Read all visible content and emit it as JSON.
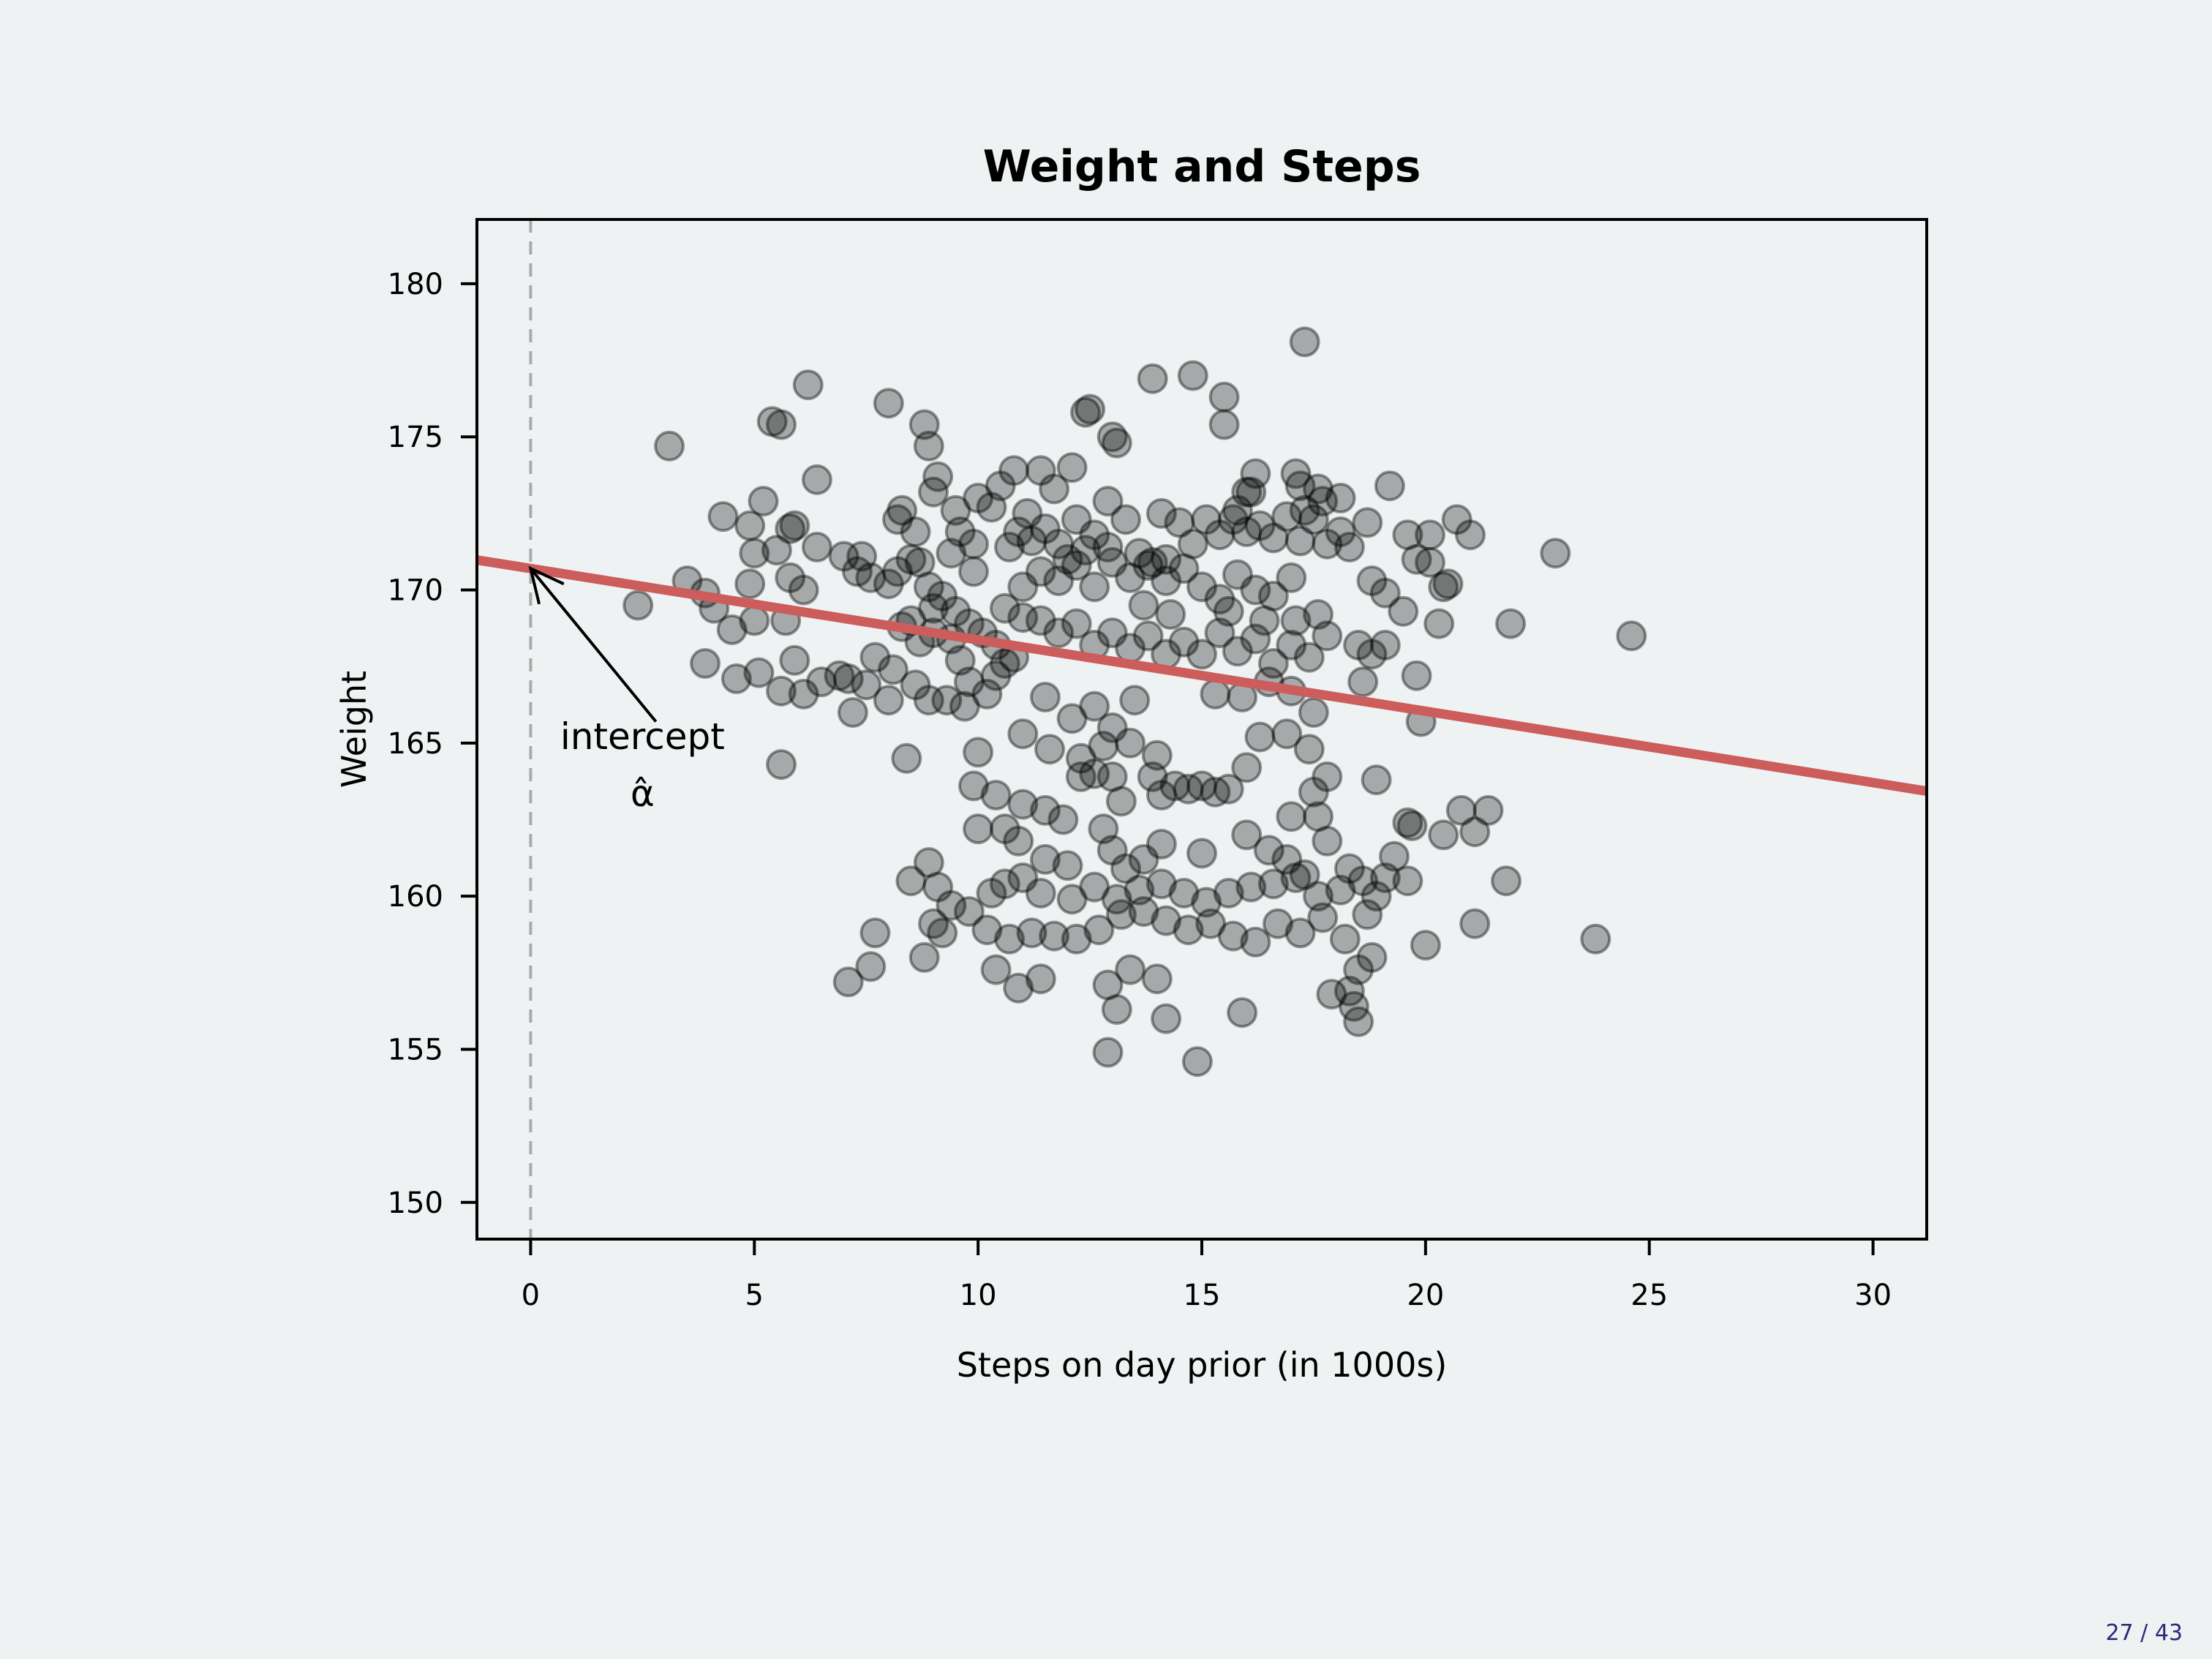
{
  "page": {
    "number": "27 / 43",
    "background": "#eef2f2"
  },
  "chart_data": {
    "type": "scatter",
    "title": "Weight and Steps",
    "xlabel": "Steps on day prior (in 1000s)",
    "ylabel": "Weight",
    "xlim": [
      -1.2,
      31.2
    ],
    "ylim": [
      148.8,
      182.1
    ],
    "xticks": [
      0,
      5,
      10,
      15,
      20,
      25,
      30
    ],
    "yticks": [
      150,
      155,
      160,
      165,
      170,
      175,
      180
    ],
    "grid": false,
    "point_color": "#000000",
    "point_alpha": 0.3,
    "fit_line": {
      "intercept": 170.7,
      "slope": -0.233,
      "color": "#cd5c5c"
    },
    "vline": {
      "x": 0,
      "style": "dashed",
      "color": "#aaaaaa"
    },
    "annotation": {
      "line1": "intercept",
      "line2": "α̂",
      "arrow_to": [
        0,
        170.7
      ],
      "text_at": [
        2.5,
        164.8
      ]
    },
    "points": [
      [
        3.1,
        174.7
      ],
      [
        6.2,
        176.7
      ],
      [
        8.0,
        176.1
      ],
      [
        5.4,
        175.5
      ],
      [
        5.6,
        175.4
      ],
      [
        8.8,
        175.4
      ],
      [
        8.9,
        174.7
      ],
      [
        6.4,
        173.6
      ],
      [
        5.2,
        172.9
      ],
      [
        4.3,
        172.4
      ],
      [
        4.9,
        172.1
      ],
      [
        5.8,
        172.0
      ],
      [
        5.9,
        172.1
      ],
      [
        6.4,
        171.4
      ],
      [
        5.0,
        171.2
      ],
      [
        5.5,
        171.3
      ],
      [
        3.5,
        170.3
      ],
      [
        4.9,
        170.2
      ],
      [
        5.8,
        170.4
      ],
      [
        6.1,
        170.0
      ],
      [
        2.4,
        169.5
      ],
      [
        3.9,
        169.9
      ],
      [
        4.1,
        169.4
      ],
      [
        5.0,
        169.0
      ],
      [
        4.5,
        168.7
      ],
      [
        5.7,
        169.0
      ],
      [
        3.9,
        167.6
      ],
      [
        4.6,
        167.1
      ],
      [
        5.1,
        167.3
      ],
      [
        5.9,
        167.7
      ],
      [
        5.6,
        166.7
      ],
      [
        6.1,
        166.6
      ],
      [
        6.5,
        167.0
      ],
      [
        5.6,
        164.3
      ],
      [
        6.9,
        167.2
      ],
      [
        7.1,
        167.1
      ],
      [
        7.5,
        166.9
      ],
      [
        7.2,
        166.0
      ],
      [
        7.7,
        167.8
      ],
      [
        8.0,
        166.4
      ],
      [
        7.0,
        171.1
      ],
      [
        7.4,
        171.1
      ],
      [
        7.3,
        170.6
      ],
      [
        7.6,
        170.4
      ],
      [
        8.0,
        170.2
      ],
      [
        8.2,
        170.6
      ],
      [
        8.5,
        171.0
      ],
      [
        8.2,
        172.3
      ],
      [
        8.3,
        172.6
      ],
      [
        8.6,
        171.9
      ],
      [
        9.1,
        173.7
      ],
      [
        9.0,
        173.2
      ],
      [
        9.5,
        172.6
      ],
      [
        9.6,
        171.9
      ],
      [
        9.9,
        171.5
      ],
      [
        8.7,
        170.9
      ],
      [
        8.9,
        170.1
      ],
      [
        9.2,
        169.8
      ],
      [
        9.5,
        169.3
      ],
      [
        9.0,
        169.4
      ],
      [
        8.5,
        169.0
      ],
      [
        8.3,
        168.8
      ],
      [
        8.7,
        168.3
      ],
      [
        9.0,
        168.6
      ],
      [
        9.4,
        168.4
      ],
      [
        9.8,
        168.9
      ],
      [
        10.1,
        168.6
      ],
      [
        10.4,
        168.2
      ],
      [
        10.8,
        167.8
      ],
      [
        9.6,
        167.7
      ],
      [
        8.1,
        167.4
      ],
      [
        8.6,
        166.9
      ],
      [
        8.9,
        166.4
      ],
      [
        9.3,
        166.4
      ],
      [
        9.7,
        166.2
      ],
      [
        10.2,
        166.6
      ],
      [
        10.4,
        167.2
      ],
      [
        10.6,
        167.6
      ],
      [
        8.4,
        164.5
      ],
      [
        9.8,
        167.0
      ],
      [
        10.0,
        173.0
      ],
      [
        10.3,
        172.7
      ],
      [
        10.5,
        173.4
      ],
      [
        10.8,
        173.9
      ],
      [
        11.1,
        172.5
      ],
      [
        11.4,
        173.9
      ],
      [
        11.7,
        173.3
      ],
      [
        12.1,
        174.0
      ],
      [
        12.5,
        175.9
      ],
      [
        12.4,
        175.8
      ],
      [
        13.1,
        174.8
      ],
      [
        13.9,
        176.9
      ],
      [
        14.8,
        177.0
      ],
      [
        15.5,
        176.3
      ],
      [
        15.5,
        175.4
      ],
      [
        17.3,
        178.1
      ],
      [
        10.9,
        171.9
      ],
      [
        11.2,
        171.6
      ],
      [
        11.5,
        172.0
      ],
      [
        11.8,
        171.5
      ],
      [
        12.2,
        172.3
      ],
      [
        12.6,
        171.8
      ],
      [
        12.9,
        171.4
      ],
      [
        13.3,
        172.3
      ],
      [
        13.6,
        171.2
      ],
      [
        13.9,
        170.9
      ],
      [
        14.2,
        171.0
      ],
      [
        14.5,
        172.2
      ],
      [
        14.8,
        171.5
      ],
      [
        15.1,
        172.3
      ],
      [
        15.4,
        171.8
      ],
      [
        15.7,
        172.3
      ],
      [
        16.0,
        171.9
      ],
      [
        16.3,
        172.1
      ],
      [
        16.6,
        171.7
      ],
      [
        16.9,
        172.4
      ],
      [
        17.2,
        171.6
      ],
      [
        17.5,
        172.3
      ],
      [
        17.8,
        171.5
      ],
      [
        18.1,
        171.9
      ],
      [
        11.0,
        170.1
      ],
      [
        11.4,
        170.6
      ],
      [
        11.8,
        170.3
      ],
      [
        12.2,
        170.8
      ],
      [
        12.6,
        170.1
      ],
      [
        13.0,
        170.9
      ],
      [
        13.4,
        170.4
      ],
      [
        13.8,
        170.8
      ],
      [
        14.2,
        170.3
      ],
      [
        14.6,
        170.7
      ],
      [
        15.0,
        170.1
      ],
      [
        15.4,
        169.7
      ],
      [
        15.8,
        170.5
      ],
      [
        16.2,
        170.0
      ],
      [
        16.6,
        169.8
      ],
      [
        17.0,
        170.4
      ],
      [
        10.6,
        169.4
      ],
      [
        11.0,
        169.1
      ],
      [
        11.4,
        169.0
      ],
      [
        11.8,
        168.6
      ],
      [
        12.2,
        168.9
      ],
      [
        12.6,
        168.2
      ],
      [
        13.0,
        168.6
      ],
      [
        13.4,
        168.1
      ],
      [
        13.8,
        168.5
      ],
      [
        14.2,
        167.9
      ],
      [
        14.6,
        168.3
      ],
      [
        15.0,
        167.9
      ],
      [
        15.4,
        168.6
      ],
      [
        15.8,
        168.0
      ],
      [
        16.2,
        168.4
      ],
      [
        16.6,
        167.6
      ],
      [
        17.0,
        168.2
      ],
      [
        17.4,
        167.8
      ],
      [
        17.8,
        168.5
      ],
      [
        13.0,
        175.0
      ],
      [
        16.2,
        173.8
      ],
      [
        16.1,
        173.2
      ],
      [
        17.1,
        173.8
      ],
      [
        17.2,
        173.4
      ],
      [
        17.7,
        172.9
      ],
      [
        16.0,
        173.2
      ],
      [
        11.5,
        166.5
      ],
      [
        12.1,
        165.8
      ],
      [
        12.6,
        166.2
      ],
      [
        13.0,
        165.5
      ],
      [
        13.5,
        166.4
      ],
      [
        11.0,
        165.3
      ],
      [
        11.6,
        164.8
      ],
      [
        12.3,
        164.5
      ],
      [
        12.8,
        164.9
      ],
      [
        13.4,
        165.0
      ],
      [
        14.0,
        164.6
      ],
      [
        15.3,
        166.6
      ],
      [
        15.9,
        166.5
      ],
      [
        16.5,
        167.0
      ],
      [
        17.0,
        166.7
      ],
      [
        16.3,
        165.2
      ],
      [
        16.9,
        165.3
      ],
      [
        17.5,
        166.0
      ],
      [
        17.4,
        164.8
      ],
      [
        10.0,
        164.7
      ],
      [
        9.9,
        163.6
      ],
      [
        10.4,
        163.3
      ],
      [
        11.0,
        163.0
      ],
      [
        11.5,
        162.8
      ],
      [
        11.9,
        162.5
      ],
      [
        12.3,
        163.9
      ],
      [
        12.6,
        164.0
      ],
      [
        13.0,
        163.9
      ],
      [
        13.2,
        163.1
      ],
      [
        13.9,
        163.9
      ],
      [
        14.1,
        163.3
      ],
      [
        14.4,
        163.6
      ],
      [
        14.7,
        163.5
      ],
      [
        15.0,
        163.6
      ],
      [
        15.3,
        163.4
      ],
      [
        15.6,
        163.5
      ],
      [
        16.0,
        164.2
      ],
      [
        17.0,
        162.6
      ],
      [
        17.5,
        163.4
      ],
      [
        17.8,
        163.9
      ],
      [
        17.6,
        162.6
      ],
      [
        10.0,
        162.2
      ],
      [
        10.6,
        162.2
      ],
      [
        10.9,
        161.8
      ],
      [
        11.5,
        161.2
      ],
      [
        12.0,
        161.0
      ],
      [
        12.8,
        162.2
      ],
      [
        13.0,
        161.5
      ],
      [
        13.3,
        160.9
      ],
      [
        13.7,
        161.2
      ],
      [
        14.1,
        161.7
      ],
      [
        15.0,
        161.4
      ],
      [
        16.0,
        162.0
      ],
      [
        16.5,
        161.5
      ],
      [
        16.9,
        161.2
      ],
      [
        17.3,
        160.7
      ],
      [
        17.8,
        161.8
      ],
      [
        18.3,
        160.9
      ],
      [
        8.9,
        161.1
      ],
      [
        8.5,
        160.5
      ],
      [
        9.1,
        160.3
      ],
      [
        9.4,
        159.7
      ],
      [
        9.8,
        159.5
      ],
      [
        10.3,
        160.1
      ],
      [
        10.6,
        160.4
      ],
      [
        11.0,
        160.6
      ],
      [
        11.4,
        160.1
      ],
      [
        12.1,
        159.9
      ],
      [
        12.6,
        160.3
      ],
      [
        13.1,
        159.9
      ],
      [
        13.6,
        160.2
      ],
      [
        14.1,
        160.4
      ],
      [
        14.6,
        160.1
      ],
      [
        15.1,
        159.8
      ],
      [
        15.6,
        160.1
      ],
      [
        16.1,
        160.3
      ],
      [
        16.6,
        160.4
      ],
      [
        17.1,
        160.6
      ],
      [
        17.6,
        160.0
      ],
      [
        18.1,
        160.2
      ],
      [
        18.6,
        160.5
      ],
      [
        19.1,
        160.6
      ],
      [
        19.6,
        160.5
      ],
      [
        9.0,
        159.1
      ],
      [
        9.2,
        158.8
      ],
      [
        10.2,
        158.9
      ],
      [
        10.7,
        158.6
      ],
      [
        11.2,
        158.8
      ],
      [
        11.7,
        158.7
      ],
      [
        12.2,
        158.6
      ],
      [
        12.7,
        158.9
      ],
      [
        13.2,
        159.4
      ],
      [
        13.7,
        159.5
      ],
      [
        14.2,
        159.2
      ],
      [
        14.7,
        158.9
      ],
      [
        15.2,
        159.1
      ],
      [
        15.7,
        158.7
      ],
      [
        16.2,
        158.5
      ],
      [
        16.7,
        159.1
      ],
      [
        17.2,
        158.8
      ],
      [
        17.7,
        159.3
      ],
      [
        18.2,
        158.6
      ],
      [
        18.7,
        159.4
      ],
      [
        7.7,
        158.8
      ],
      [
        8.8,
        158.0
      ],
      [
        7.6,
        157.7
      ],
      [
        7.1,
        157.2
      ],
      [
        10.4,
        157.6
      ],
      [
        10.9,
        157.0
      ],
      [
        11.4,
        157.3
      ],
      [
        12.9,
        157.1
      ],
      [
        13.4,
        157.6
      ],
      [
        14.0,
        157.3
      ],
      [
        13.1,
        156.3
      ],
      [
        14.2,
        156.0
      ],
      [
        15.9,
        156.2
      ],
      [
        17.9,
        156.8
      ],
      [
        18.3,
        156.9
      ],
      [
        18.4,
        156.4
      ],
      [
        18.5,
        155.9
      ],
      [
        12.9,
        154.9
      ],
      [
        14.9,
        154.6
      ],
      [
        18.5,
        157.6
      ],
      [
        18.8,
        158.0
      ],
      [
        18.9,
        160.0
      ],
      [
        19.3,
        161.3
      ],
      [
        19.7,
        162.3
      ],
      [
        18.9,
        163.8
      ],
      [
        19.6,
        162.4
      ],
      [
        20.4,
        162.0
      ],
      [
        20.8,
        162.8
      ],
      [
        21.1,
        162.1
      ],
      [
        21.4,
        162.8
      ],
      [
        21.1,
        159.1
      ],
      [
        21.8,
        160.5
      ],
      [
        23.8,
        158.6
      ],
      [
        20.0,
        158.4
      ],
      [
        21.9,
        168.9
      ],
      [
        20.5,
        170.2
      ],
      [
        20.3,
        168.9
      ],
      [
        19.8,
        167.2
      ],
      [
        19.9,
        165.7
      ],
      [
        19.8,
        171.0
      ],
      [
        20.1,
        170.9
      ],
      [
        19.6,
        171.8
      ],
      [
        20.1,
        171.8
      ],
      [
        20.7,
        172.3
      ],
      [
        21.0,
        171.8
      ],
      [
        20.4,
        170.1
      ],
      [
        22.9,
        171.2
      ],
      [
        24.6,
        168.5
      ],
      [
        19.2,
        173.4
      ],
      [
        18.8,
        170.3
      ],
      [
        19.1,
        169.9
      ],
      [
        19.5,
        169.3
      ],
      [
        18.5,
        168.2
      ],
      [
        18.8,
        167.9
      ],
      [
        19.1,
        168.2
      ],
      [
        18.6,
        167.0
      ],
      [
        18.3,
        171.4
      ],
      [
        18.7,
        172.2
      ],
      [
        18.1,
        173.0
      ],
      [
        17.6,
        173.3
      ],
      [
        17.3,
        172.6
      ],
      [
        12.0,
        171.0
      ],
      [
        12.4,
        171.3
      ],
      [
        13.7,
        169.5
      ],
      [
        14.3,
        169.2
      ],
      [
        15.6,
        169.3
      ],
      [
        16.4,
        169.0
      ],
      [
        17.1,
        169.0
      ],
      [
        17.6,
        169.2
      ],
      [
        12.9,
        172.9
      ],
      [
        14.1,
        172.5
      ],
      [
        15.8,
        172.6
      ],
      [
        10.7,
        171.4
      ],
      [
        9.9,
        170.6
      ],
      [
        9.4,
        171.2
      ]
    ]
  }
}
